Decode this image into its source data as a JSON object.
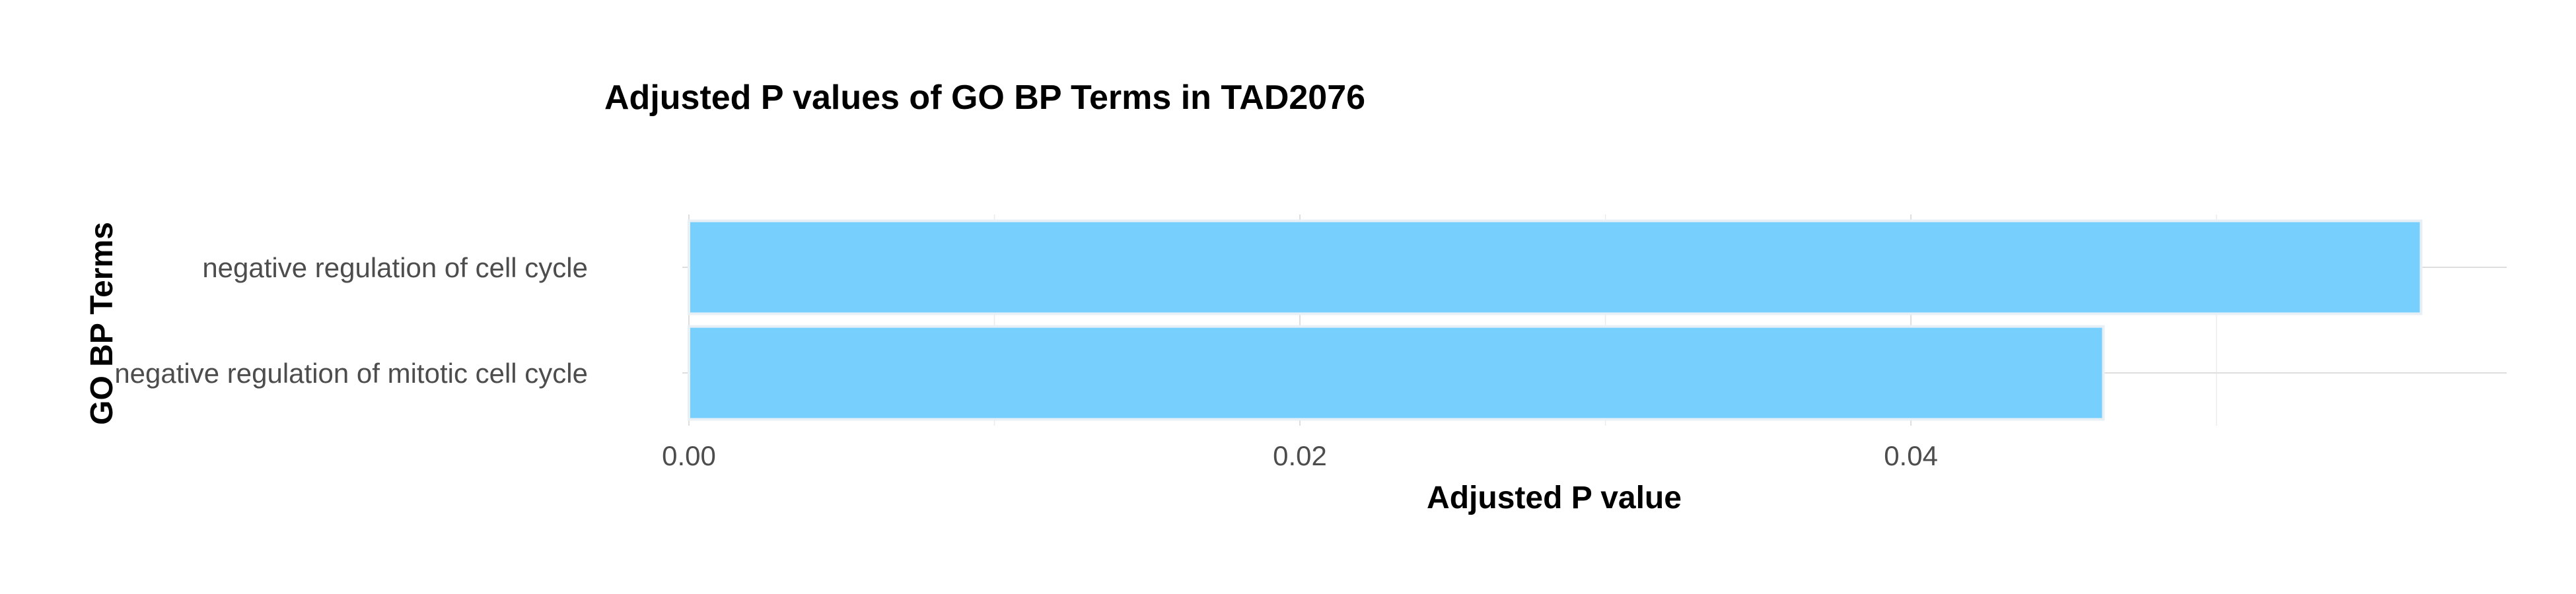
{
  "chart_data": {
    "type": "bar",
    "orientation": "horizontal",
    "title": "Adjusted P values of GO BP Terms in TAD2076",
    "xlabel": "Adjusted P value",
    "ylabel": "GO BP Terms",
    "categories": [
      "negative regulation of cell cycle",
      "negative regulation of mitotic cell cycle"
    ],
    "values": [
      0.0567,
      0.0463
    ],
    "xlim": [
      0,
      0.0595
    ],
    "xticks": [
      0.0,
      0.02,
      0.04
    ],
    "xtick_labels": [
      "0.00",
      "0.02",
      "0.04"
    ],
    "grid": true,
    "legend": "none",
    "bar_color": "#76CFFC"
  }
}
